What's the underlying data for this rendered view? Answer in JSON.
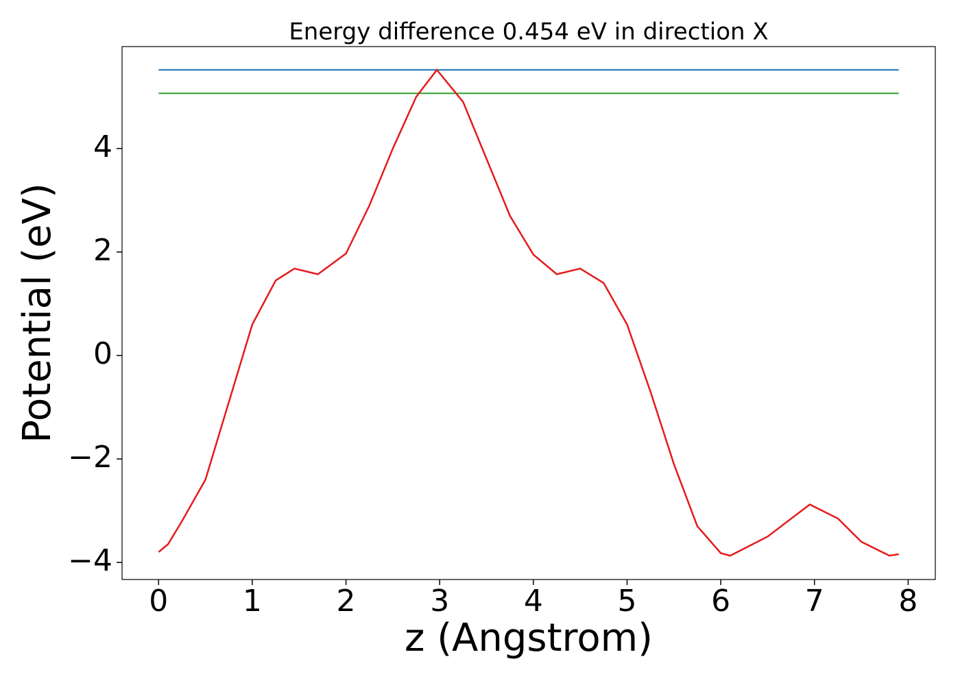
{
  "chart_data": {
    "type": "line",
    "title": "Energy difference 0.454 eV in direction X",
    "xlabel": "z (Angstrom)",
    "ylabel": "Potential (eV)",
    "xlim": [
      -0.39,
      8.29
    ],
    "ylim": [
      -4.33,
      5.97
    ],
    "xticks": [
      0,
      1,
      2,
      3,
      4,
      5,
      6,
      7,
      8
    ],
    "yticks": [
      {
        "value": -4,
        "label": "−4"
      },
      {
        "value": -2,
        "label": "−2"
      },
      0,
      2,
      4
    ],
    "grid": false,
    "series": [
      {
        "color": "#1f77b4",
        "x": [
          0,
          7.9
        ],
        "values": [
          5.52,
          5.52
        ]
      },
      {
        "color": "#2ca02c",
        "x": [
          0,
          7.9
        ],
        "values": [
          5.066,
          5.066
        ]
      },
      {
        "color": "#e41a1c",
        "x": [
          0,
          0.1,
          0.25,
          0.5,
          0.75,
          1.0,
          1.25,
          1.45,
          1.7,
          2.0,
          2.25,
          2.5,
          2.75,
          2.97,
          3.25,
          3.5,
          3.75,
          4.0,
          4.25,
          4.5,
          4.75,
          5.0,
          5.25,
          5.5,
          5.75,
          6.0,
          6.1,
          6.5,
          6.95,
          7.25,
          7.5,
          7.8,
          7.9
        ],
        "values": [
          -3.8,
          -3.65,
          -3.2,
          -2.4,
          -0.9,
          0.6,
          1.45,
          1.68,
          1.57,
          1.97,
          2.9,
          4.0,
          5.0,
          5.52,
          4.9,
          3.8,
          2.7,
          1.95,
          1.57,
          1.68,
          1.4,
          0.6,
          -0.7,
          -2.1,
          -3.3,
          -3.82,
          -3.87,
          -3.5,
          -2.88,
          -3.15,
          -3.6,
          -3.87,
          -3.84
        ]
      }
    ]
  }
}
